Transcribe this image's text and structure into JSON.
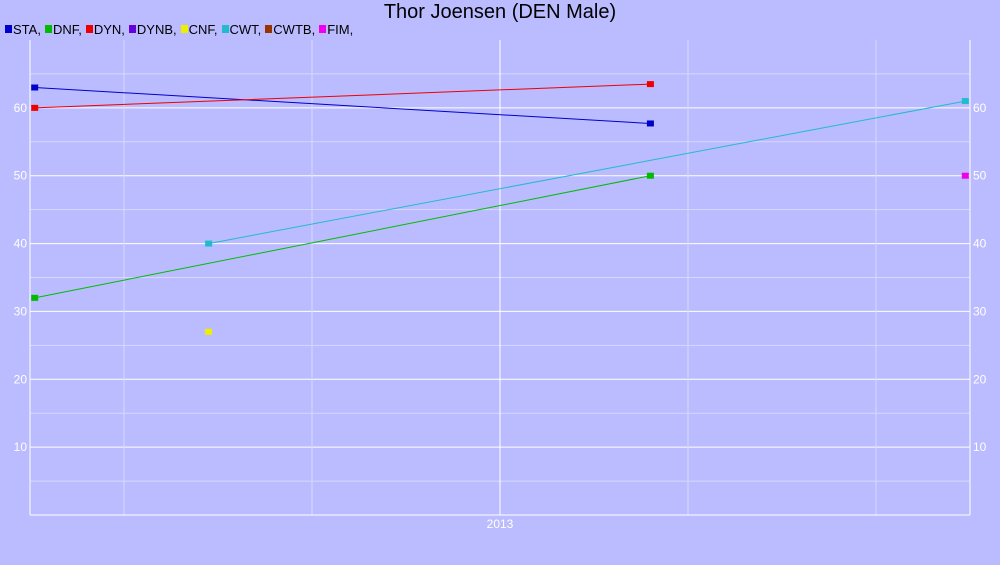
{
  "chart_data": {
    "type": "line",
    "title": "Thor Joensen (DEN Male)",
    "x_tick_labels": [
      "2013"
    ],
    "y_ticks": [
      10,
      20,
      30,
      40,
      50,
      60
    ],
    "ylim": [
      0,
      70
    ],
    "xlim": [
      0,
      1
    ],
    "grid": true,
    "legend_position": "top-left",
    "series": [
      {
        "name": "STA",
        "color": "#0000cc",
        "points": [
          [
            0.005,
            63
          ],
          [
            0.66,
            57.7
          ]
        ]
      },
      {
        "name": "DNF",
        "color": "#00bb00",
        "points": [
          [
            0.005,
            32
          ],
          [
            0.66,
            50
          ]
        ]
      },
      {
        "name": "DYN",
        "color": "#ee0000",
        "points": [
          [
            0.005,
            60
          ],
          [
            0.66,
            63.5
          ]
        ]
      },
      {
        "name": "DYNB",
        "color": "#6600dd",
        "points": []
      },
      {
        "name": "CNF",
        "color": "#eeee00",
        "points": [
          [
            0.19,
            27
          ]
        ]
      },
      {
        "name": "CWT",
        "color": "#22bbcc",
        "points": [
          [
            0.19,
            40
          ],
          [
            0.995,
            61
          ]
        ]
      },
      {
        "name": "CWTB",
        "color": "#993300",
        "points": []
      },
      {
        "name": "FIM",
        "color": "#ee00ee",
        "points": [
          [
            0.995,
            50
          ]
        ]
      }
    ]
  }
}
